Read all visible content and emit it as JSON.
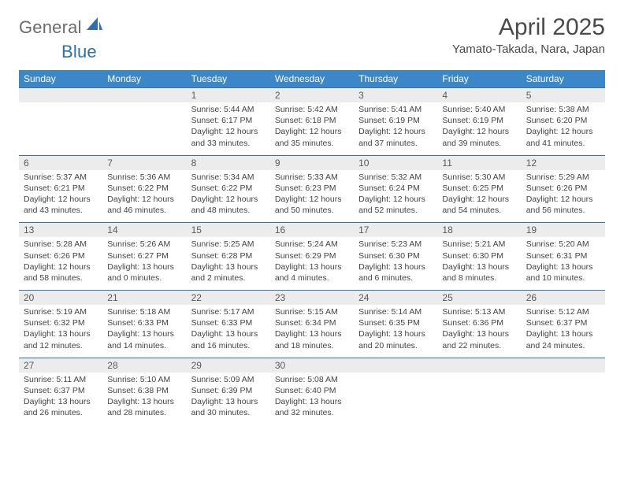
{
  "brand": {
    "gray": "General",
    "blue": "Blue"
  },
  "title": "April 2025",
  "location": "Yamato-Takada, Nara, Japan",
  "colors": {
    "header_bg": "#3b87c8",
    "header_text": "#ffffff",
    "week_divider": "#3b6fa0",
    "daynum_bg": "#ececec",
    "daynum_text": "#5a5a5a",
    "body_text": "#444444",
    "page_bg": "#ffffff",
    "logo_gray": "#6b6b6b",
    "logo_blue": "#2f6fb0",
    "sail_fill": "#2f6fb0"
  },
  "weekdays": [
    "Sunday",
    "Monday",
    "Tuesday",
    "Wednesday",
    "Thursday",
    "Friday",
    "Saturday"
  ],
  "weeks": [
    [
      null,
      null,
      {
        "n": "1",
        "sr": "5:44 AM",
        "ss": "6:17 PM",
        "dl": "12 hours and 33 minutes."
      },
      {
        "n": "2",
        "sr": "5:42 AM",
        "ss": "6:18 PM",
        "dl": "12 hours and 35 minutes."
      },
      {
        "n": "3",
        "sr": "5:41 AM",
        "ss": "6:19 PM",
        "dl": "12 hours and 37 minutes."
      },
      {
        "n": "4",
        "sr": "5:40 AM",
        "ss": "6:19 PM",
        "dl": "12 hours and 39 minutes."
      },
      {
        "n": "5",
        "sr": "5:38 AM",
        "ss": "6:20 PM",
        "dl": "12 hours and 41 minutes."
      }
    ],
    [
      {
        "n": "6",
        "sr": "5:37 AM",
        "ss": "6:21 PM",
        "dl": "12 hours and 43 minutes."
      },
      {
        "n": "7",
        "sr": "5:36 AM",
        "ss": "6:22 PM",
        "dl": "12 hours and 46 minutes."
      },
      {
        "n": "8",
        "sr": "5:34 AM",
        "ss": "6:22 PM",
        "dl": "12 hours and 48 minutes."
      },
      {
        "n": "9",
        "sr": "5:33 AM",
        "ss": "6:23 PM",
        "dl": "12 hours and 50 minutes."
      },
      {
        "n": "10",
        "sr": "5:32 AM",
        "ss": "6:24 PM",
        "dl": "12 hours and 52 minutes."
      },
      {
        "n": "11",
        "sr": "5:30 AM",
        "ss": "6:25 PM",
        "dl": "12 hours and 54 minutes."
      },
      {
        "n": "12",
        "sr": "5:29 AM",
        "ss": "6:26 PM",
        "dl": "12 hours and 56 minutes."
      }
    ],
    [
      {
        "n": "13",
        "sr": "5:28 AM",
        "ss": "6:26 PM",
        "dl": "12 hours and 58 minutes."
      },
      {
        "n": "14",
        "sr": "5:26 AM",
        "ss": "6:27 PM",
        "dl": "13 hours and 0 minutes."
      },
      {
        "n": "15",
        "sr": "5:25 AM",
        "ss": "6:28 PM",
        "dl": "13 hours and 2 minutes."
      },
      {
        "n": "16",
        "sr": "5:24 AM",
        "ss": "6:29 PM",
        "dl": "13 hours and 4 minutes."
      },
      {
        "n": "17",
        "sr": "5:23 AM",
        "ss": "6:30 PM",
        "dl": "13 hours and 6 minutes."
      },
      {
        "n": "18",
        "sr": "5:21 AM",
        "ss": "6:30 PM",
        "dl": "13 hours and 8 minutes."
      },
      {
        "n": "19",
        "sr": "5:20 AM",
        "ss": "6:31 PM",
        "dl": "13 hours and 10 minutes."
      }
    ],
    [
      {
        "n": "20",
        "sr": "5:19 AM",
        "ss": "6:32 PM",
        "dl": "13 hours and 12 minutes."
      },
      {
        "n": "21",
        "sr": "5:18 AM",
        "ss": "6:33 PM",
        "dl": "13 hours and 14 minutes."
      },
      {
        "n": "22",
        "sr": "5:17 AM",
        "ss": "6:33 PM",
        "dl": "13 hours and 16 minutes."
      },
      {
        "n": "23",
        "sr": "5:15 AM",
        "ss": "6:34 PM",
        "dl": "13 hours and 18 minutes."
      },
      {
        "n": "24",
        "sr": "5:14 AM",
        "ss": "6:35 PM",
        "dl": "13 hours and 20 minutes."
      },
      {
        "n": "25",
        "sr": "5:13 AM",
        "ss": "6:36 PM",
        "dl": "13 hours and 22 minutes."
      },
      {
        "n": "26",
        "sr": "5:12 AM",
        "ss": "6:37 PM",
        "dl": "13 hours and 24 minutes."
      }
    ],
    [
      {
        "n": "27",
        "sr": "5:11 AM",
        "ss": "6:37 PM",
        "dl": "13 hours and 26 minutes."
      },
      {
        "n": "28",
        "sr": "5:10 AM",
        "ss": "6:38 PM",
        "dl": "13 hours and 28 minutes."
      },
      {
        "n": "29",
        "sr": "5:09 AM",
        "ss": "6:39 PM",
        "dl": "13 hours and 30 minutes."
      },
      {
        "n": "30",
        "sr": "5:08 AM",
        "ss": "6:40 PM",
        "dl": "13 hours and 32 minutes."
      },
      null,
      null,
      null
    ]
  ],
  "labels": {
    "sunrise": "Sunrise:",
    "sunset": "Sunset:",
    "daylight": "Daylight:"
  }
}
